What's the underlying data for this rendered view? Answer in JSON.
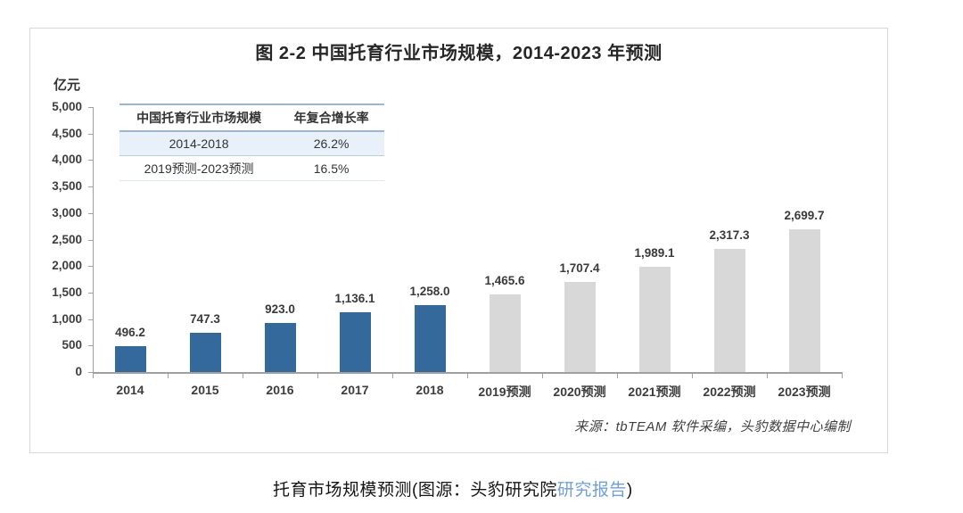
{
  "figure": {
    "title": "图 2-2 中国托育行业市场规模，2014-2023 年预测",
    "unit_label": "亿元",
    "source_note": "来源：tbTEAM 软件采编，头豹数据中心编制",
    "summary_table": {
      "headers": [
        "中国托育行业市场规模",
        "年复合增长率"
      ],
      "rows": [
        [
          "2014-2018",
          "26.2%"
        ],
        [
          "2019预测-2023预测",
          "16.5%"
        ]
      ],
      "highlight_row_bg": "#e8f0fa",
      "line_color": "#9cb6d0"
    }
  },
  "caption": {
    "text_before_link": "托育市场规模预测(图源：头豹研究院",
    "link_text": "研究报告",
    "text_after_link": ")",
    "link_color": "#6fa0dc"
  },
  "chart_data": {
    "type": "bar",
    "title": "图 2-2 中国托育行业市场规模，2014-2023 年预测",
    "xlabel": "",
    "ylabel": "亿元",
    "categories": [
      "2014",
      "2015",
      "2016",
      "2017",
      "2018",
      "2019预测",
      "2020预测",
      "2021预测",
      "2022预测",
      "2023预测"
    ],
    "values": [
      496.2,
      747.3,
      923.0,
      1136.1,
      1258.0,
      1465.6,
      1707.4,
      1989.1,
      2317.3,
      2699.7
    ],
    "value_labels": [
      "496.2",
      "747.3",
      "923.0",
      "1,136.1",
      "1,258.0",
      "1,465.6",
      "1,707.4",
      "1,989.1",
      "2,317.3",
      "2,699.7"
    ],
    "actual_count": 5,
    "bar_colors": {
      "actual": "#34699c",
      "forecast": "#d8d8d8"
    },
    "ylim": [
      0,
      5000
    ],
    "ytick_interval": 500,
    "ytick_labels": [
      "0",
      "500",
      "1,000",
      "1,500",
      "2,000",
      "2,500",
      "3,000",
      "3,500",
      "4,000",
      "4,500",
      "5,000"
    ],
    "grid": false,
    "legend": "none"
  }
}
